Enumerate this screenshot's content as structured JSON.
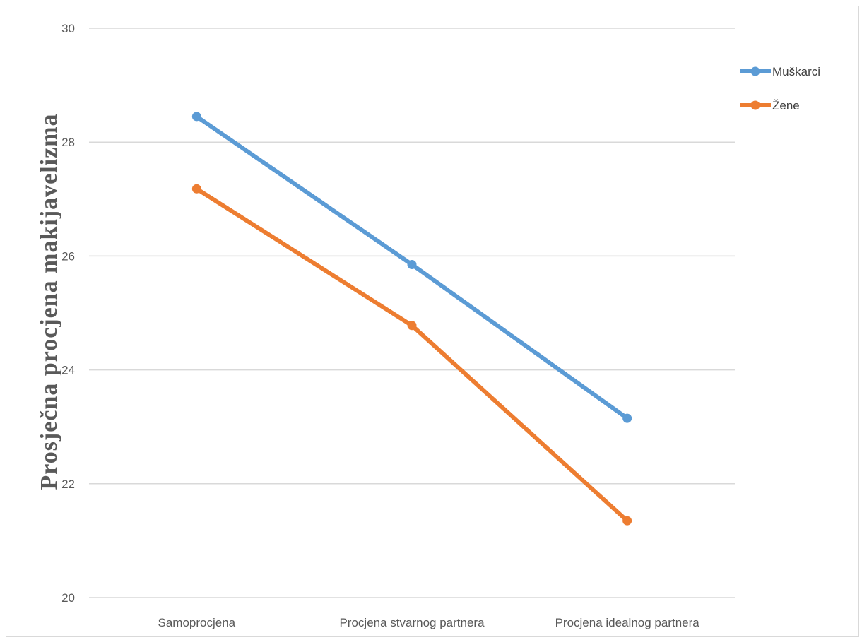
{
  "chart_data": {
    "type": "line",
    "title": "",
    "xlabel": "",
    "ylabel": "Prosječna procjena makijavelizma",
    "categories": [
      "Samoprocjena",
      "Procjena stvarnog partnera",
      "Procjena idealnog partnera"
    ],
    "ylim": [
      20,
      30
    ],
    "yticks": [
      20,
      22,
      24,
      26,
      28,
      30
    ],
    "grid": true,
    "legend_position": "right",
    "series": [
      {
        "name": "Muškarci",
        "color": "#5b9bd5",
        "values": [
          28.45,
          25.85,
          23.15
        ]
      },
      {
        "name": "Žene",
        "color": "#ed7d31",
        "values": [
          27.18,
          24.78,
          21.35
        ]
      }
    ]
  }
}
